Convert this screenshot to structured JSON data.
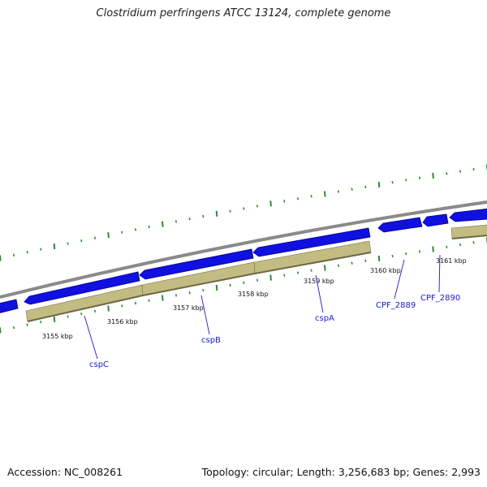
{
  "title": "Clostridium perfringens ATCC 13124, complete genome",
  "footer": {
    "accession": "Accession: NC_008261",
    "summary": "Topology: circular; Length: 3,256,683 bp; Genes: 2,993"
  },
  "ruler_labels": [
    "3155 kbp",
    "3156 kbp",
    "3157 kbp",
    "3158 kbp",
    "3159 kbp",
    "3160 kbp",
    "3161 kbp"
  ],
  "gene_labels": [
    "cspC",
    "cspB",
    "cspA",
    "CPF_2889",
    "CPF_2890"
  ],
  "colors": {
    "backbone": "#8a8a8a",
    "cds": "#1010e0",
    "cds_dark": "#000090",
    "feature": "#c2bb82",
    "feature_dark": "#7a7448",
    "tick": "#2e8b2e",
    "label": "#1a1acc"
  }
}
